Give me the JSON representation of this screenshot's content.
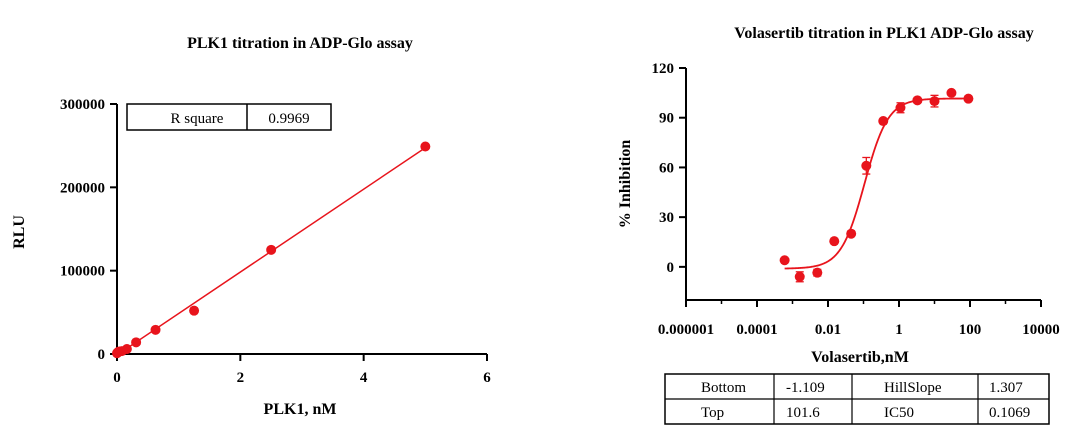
{
  "chart_data": [
    {
      "type": "scatter",
      "title": "PLK1 titration in ADP-Glo assay",
      "xlabel": "PLK1, nM",
      "ylabel": "RLU",
      "xlim": [
        0,
        6
      ],
      "ylim": [
        0,
        300000
      ],
      "x_ticks": [
        0,
        2,
        4,
        6
      ],
      "x_tick_labels": [
        "0",
        "2",
        "4",
        "6"
      ],
      "y_ticks": [
        0,
        100000,
        200000,
        300000
      ],
      "y_tick_labels": [
        "0",
        "100000",
        "200000",
        "300000"
      ],
      "grid": false,
      "color": "#e8141c",
      "fit": "linear",
      "fit_range": [
        0,
        5
      ],
      "points": [
        {
          "x": 0.0,
          "y": 1000
        },
        {
          "x": 0.02,
          "y": 2500
        },
        {
          "x": 0.04,
          "y": 3000
        },
        {
          "x": 0.08,
          "y": 3500
        },
        {
          "x": 0.16,
          "y": 6000
        },
        {
          "x": 0.31,
          "y": 14000
        },
        {
          "x": 0.625,
          "y": 29000
        },
        {
          "x": 1.25,
          "y": 52000
        },
        {
          "x": 2.5,
          "y": 125000
        },
        {
          "x": 5.0,
          "y": 249000
        }
      ],
      "stats_table": {
        "rows": [
          [
            "R square",
            "0.9969"
          ]
        ]
      }
    },
    {
      "type": "scatter",
      "title": "Volasertib titration in PLK1 ADP-Glo assay",
      "xlabel": "Volasertib,nM",
      "ylabel": "% Inhibition",
      "x_scale": "log",
      "xlim": [
        1e-06,
        10000
      ],
      "ylim": [
        -20,
        120
      ],
      "x_ticks": [
        1e-06,
        0.0001,
        0.01,
        1,
        100,
        10000
      ],
      "x_tick_labels": [
        "0.000001",
        "0.0001",
        "0.01",
        "1",
        "100",
        "10000"
      ],
      "y_ticks": [
        0,
        30,
        60,
        90,
        120
      ],
      "y_tick_labels": [
        "0",
        "30",
        "60",
        "90",
        "120"
      ],
      "grid": false,
      "color": "#e8141c",
      "fit": "four-parameter logistic",
      "fit_params": {
        "bottom": -1.109,
        "top": 101.6,
        "ic50": 0.1069,
        "hillslope": 1.307
      },
      "points": [
        {
          "x": 0.0006,
          "y": 4,
          "err": 0
        },
        {
          "x": 0.0016,
          "y": -6,
          "err": 3
        },
        {
          "x": 0.005,
          "y": -3.5,
          "err": 2
        },
        {
          "x": 0.015,
          "y": 15.5,
          "err": 0
        },
        {
          "x": 0.045,
          "y": 20,
          "err": 0
        },
        {
          "x": 0.12,
          "y": 61,
          "err": 5
        },
        {
          "x": 0.36,
          "y": 88,
          "err": 0
        },
        {
          "x": 1.1,
          "y": 96,
          "err": 3
        },
        {
          "x": 3.3,
          "y": 100.5,
          "err": 0
        },
        {
          "x": 10,
          "y": 100,
          "err": 3.5
        },
        {
          "x": 30,
          "y": 105,
          "err": 0
        },
        {
          "x": 90,
          "y": 101.5,
          "err": 0
        }
      ],
      "stats_table": {
        "rows": [
          [
            "Bottom",
            "-1.109",
            "HillSlope",
            "1.307"
          ],
          [
            "Top",
            "101.6",
            "IC50",
            "0.1069"
          ]
        ]
      }
    }
  ]
}
